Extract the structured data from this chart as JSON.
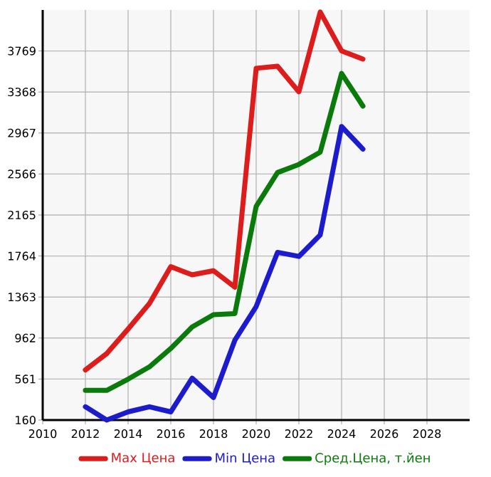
{
  "chart_data": {
    "type": "line",
    "x": [
      2012,
      2013,
      2014,
      2015,
      2016,
      2017,
      2018,
      2019,
      2020,
      2021,
      2022,
      2023,
      2024,
      2025
    ],
    "series": [
      {
        "name": "Max Цена",
        "color": "#dd1c1c",
        "values": [
          650,
          810,
          1050,
          1300,
          1660,
          1580,
          1620,
          1460,
          3600,
          3620,
          3370,
          4150,
          3770,
          3690
        ]
      },
      {
        "name": "Min Цена",
        "color": "#1c1ccc",
        "values": [
          290,
          160,
          240,
          290,
          240,
          570,
          380,
          940,
          1270,
          1800,
          1760,
          1970,
          3030,
          2810
        ]
      },
      {
        "name": "Сред.Цена, т.йен",
        "color": "#0a7a0a",
        "values": [
          450,
          450,
          560,
          680,
          860,
          1070,
          1190,
          1200,
          2250,
          2580,
          2660,
          2780,
          3550,
          3230
        ]
      }
    ],
    "xlim": [
      2010,
      2030
    ],
    "xticks": [
      2010,
      2012,
      2014,
      2016,
      2018,
      2020,
      2022,
      2024,
      2026,
      2028
    ],
    "ylim": [
      160,
      4170
    ],
    "yticks": [
      160,
      561,
      962,
      1363,
      1764,
      2165,
      2566,
      2967,
      3368,
      3769
    ],
    "grid": true,
    "legend": "bottom",
    "marker": "none",
    "line_style": "solid"
  }
}
